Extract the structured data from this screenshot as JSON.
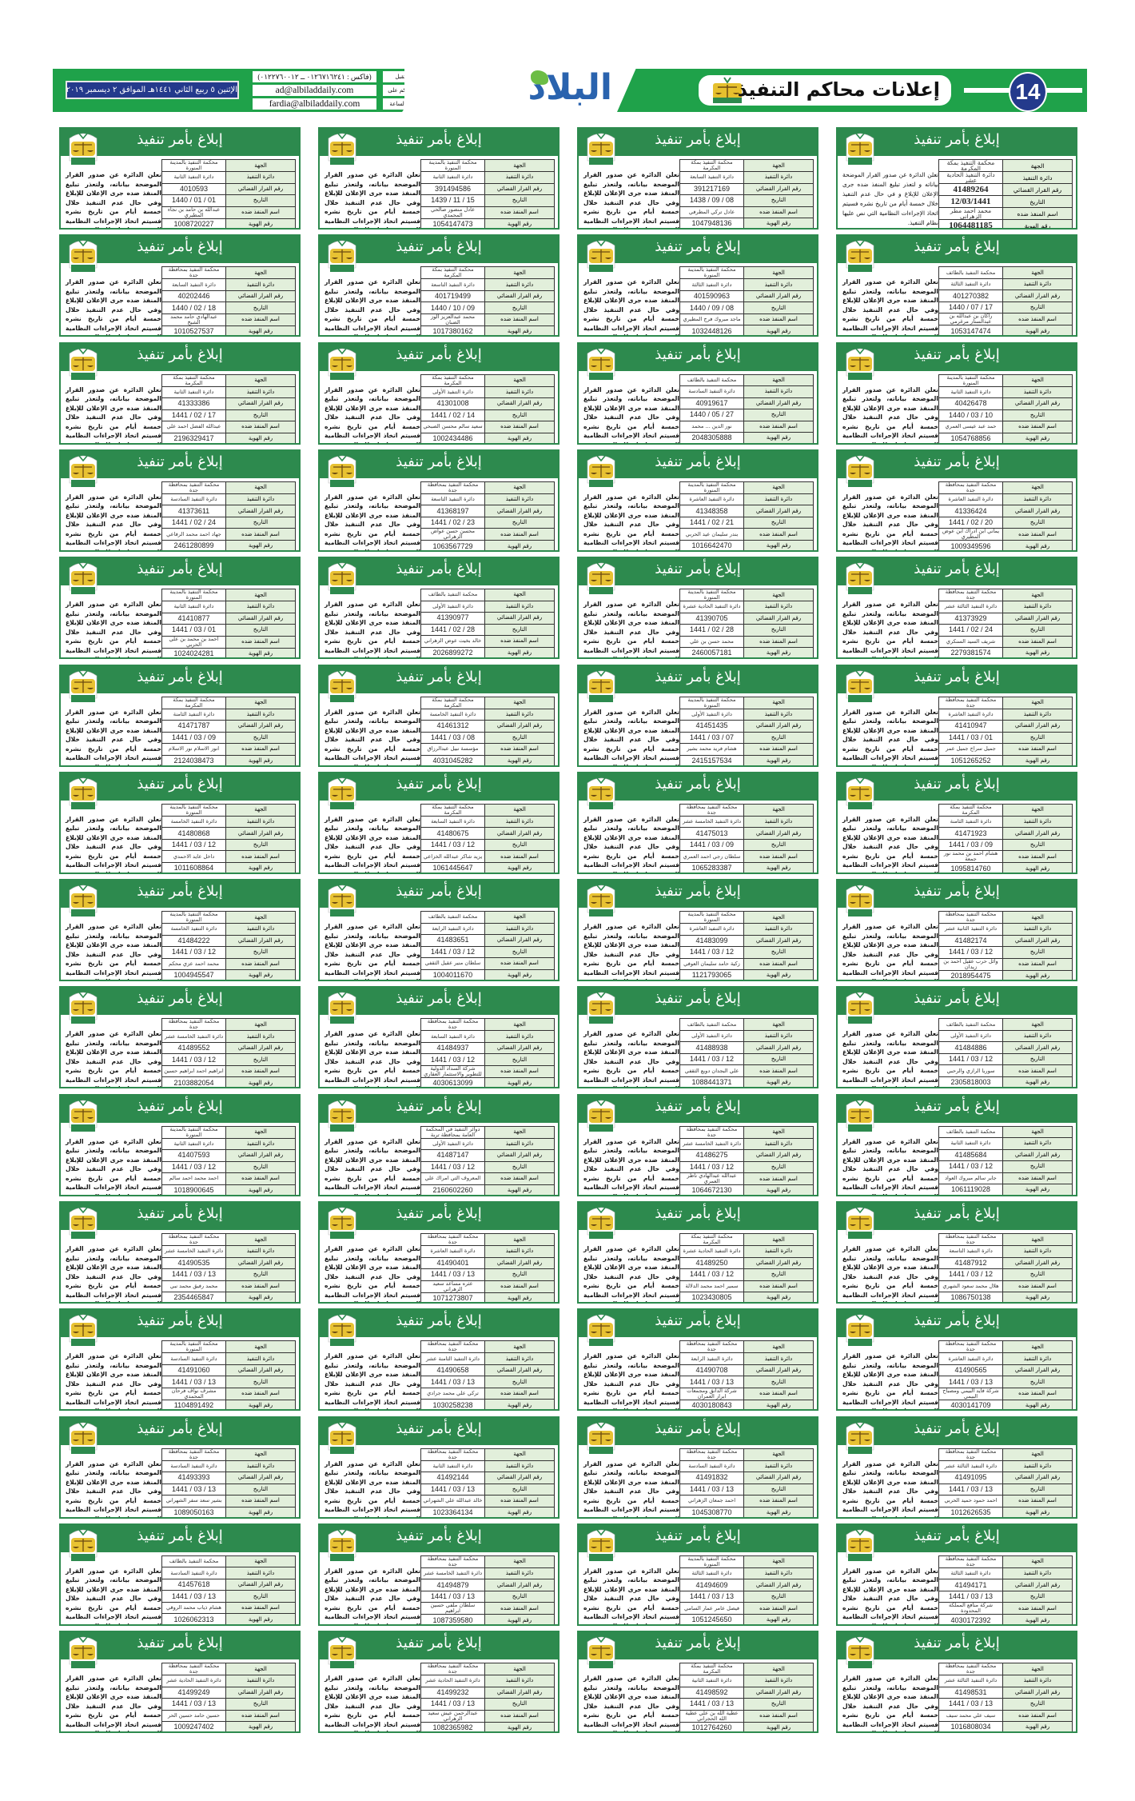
{
  "masthead": {
    "date_line": "الإثنين ٥ ربيع الثاني ١٤٤١هـ الموافق ٢ ديسمبر ٢٠١٩م السنة ٨٩ العدد ٢٢٨٣٦",
    "contacts": [
      {
        "label": "نستقبل",
        "value": "(فاكس : ٠١٢٦٧١٦٢٤١ ــ ٠١٢٢٧٦٠٠١٢)"
      },
      {
        "label": "اعلاناتكم على",
        "value": "ad@albiladdaily.com"
      },
      {
        "label": "مدار الساعة",
        "value": "fardia@albiladdaily.com"
      }
    ],
    "logo_text": "البلاد",
    "section_title": "إعلانات محاكم التنفيذ",
    "page_number": "14",
    "colors": {
      "green": "#1fa24a",
      "navy": "#243a8c",
      "card_green": "#2d8a4e",
      "label_bg": "#e2efdb"
    }
  },
  "card_template": {
    "title": "إبلاغ بأمر تنفيذ",
    "labels": [
      "الجهة",
      "دائرة التنفيذ",
      "رقم القرار القضائي",
      "التاريخ",
      "اسم المنفذ ضده",
      "رقم الهوية"
    ],
    "notice_text": "تعلن الدائرة عن صدور القرار الموضحة بياناته، ولتعذر تبليغ المنفذ ضده جرى الإعلان للإبلاغ وفي حال عدم التنفيذ خلال خمسة أيام من تاريخ نشره فسيتم اتخاذ الإجراءات النظامية التي نص عليها نظام التنفيذ.",
    "notice_text_alt": "تعلن الدائرة عن صدور القرار الموضحة بياناته و لتعذر تبليغ المنفذ ضده جرى الإعلان للإبلاغ و في حال عدم التنفيذ خلال خمسة أيام من تاريخ نشره فسيتم اتخاذ الإجراءات النظامية التي نص عليها نظام التنفيذ."
  },
  "notices": [
    {
      "court": "محكمة التنفيذ بالمدينة المنورة",
      "dept": "دائرة التنفيذ الثانية",
      "decision": "4010593",
      "date": "01 / 01 / 1440",
      "name": "عبدالله بن حامد بن نجاء المطيري",
      "id": "1008720227"
    },
    {
      "court": "محكمة التنفيذ بالمدينة المنورة",
      "dept": "دائرة التنفيذ الثانية",
      "decision": "391494586",
      "date": "15 / 11 / 1439",
      "name": "عادل منصور صالحي المحمدي",
      "id": "1054147473"
    },
    {
      "court": "محكمة التنفيذ بمكة المكرمة",
      "dept": "دائرة التنفيذ السابعة",
      "decision": "391217169",
      "date": "08 / 09 / 1438",
      "name": "عادل تركي المطرفي",
      "id": "1047948136"
    },
    {
      "court": "محكمة التنفيذ بمكة المكرمة",
      "dept": "دائرة التنفيذ الحادية عشر",
      "decision": "41489264",
      "date": "12/03/1441",
      "name": "محمد احمد مطر الزهراني",
      "id": "1064481185",
      "special": true
    },
    {
      "court": "محكمة التنفيذ بمحافظة جدة",
      "dept": "دائرة التنفيذ السابعة",
      "decision": "40202446",
      "date": "18 / 02 / 1440",
      "name": "عبدالهادي حامد محمد الشيخ",
      "id": "1010527537"
    },
    {
      "court": "محكمة التنفيذ بمكة المكرمة",
      "dept": "دائرة التنفيذ التاسعة",
      "decision": "401719499",
      "date": "09 / 10 / 1440",
      "name": "محمد عبدالعزيز الوز الضبان",
      "id": "1017380162"
    },
    {
      "court": "محكمة التنفيذ بالمدينة المنورة",
      "dept": "دائرة التنفيذ الثالثة",
      "decision": "401590963",
      "date": "08 / 09 / 1440",
      "name": "ماجد مبروك فرج المطيري",
      "id": "1032448126"
    },
    {
      "court": "محكمة التنفيذ بالطائف",
      "dept": "دائرة التنفيذ الثالثة",
      "decision": "401270382",
      "date": "17 / 07 / 1440",
      "name": "راكان بن عبدالله بن عبدالستار مرغرمي",
      "id": "1053147474"
    },
    {
      "court": "محكمة التنفيذ بمكة المكرمة",
      "dept": "دائرة التنفيذ الثانية",
      "decision": "41333386",
      "date": "17 / 02 / 1441",
      "name": "عبدالله الفضل احمد علي",
      "id": "2196329417"
    },
    {
      "court": "محكمة التنفيذ بمكة المكرمة",
      "dept": "دائرة التنفيذ الأولى",
      "decision": "41301008",
      "date": "14 / 02 / 1441",
      "name": "سعيد سالم محسن الصبحي",
      "id": "1002434486"
    },
    {
      "court": "محكمة التنفيذ بالطائف",
      "dept": "دائرة التنفيذ السادسة",
      "decision": "40919617",
      "date": "27 / 05 / 1440",
      "name": "نور الدين ... محمد",
      "id": "2048305888"
    },
    {
      "court": "محكمة التنفيذ بالمدينة المنورة",
      "dept": "دائرة التنفيذ الثانية",
      "decision": "40426478",
      "date": "10 / 03 / 1440",
      "name": "حمد عبد عيسى العمري",
      "id": "1054768856"
    },
    {
      "court": "محكمة التنفيذ بمحافظة جدة",
      "dept": "دائرة التنفيذ السادسة",
      "decision": "41373611",
      "date": "24 / 02 / 1441",
      "name": "جهاد احمد محمد الرفاعي",
      "id": "2461280899"
    },
    {
      "court": "محكمة التنفيذ بمحافظة جدة",
      "dept": "دائرة التنفيذ التاسعة",
      "decision": "41368197",
      "date": "23 / 02 / 1441",
      "name": "محسن حسن عواض الزهراني",
      "id": "1063567729"
    },
    {
      "court": "محكمة التنفيذ بالمدينة المنورة",
      "dept": "دائرة التنفيذ العاشرة",
      "decision": "41348358",
      "date": "21 / 02 / 1441",
      "name": "بندر سليمان عيد الحربي",
      "id": "1016642470"
    },
    {
      "court": "محكمة التنفيذ بمحافظة جدة",
      "dept": "دائرة التنفيذ العاشرة",
      "decision": "41336424",
      "date": "20 / 02 / 1441",
      "name": "يماني ابن ادراك ابن عوض المطيري",
      "id": "1009349596"
    },
    {
      "court": "محكمة التنفيذ بالمدينة المنورة",
      "dept": "دائرة التنفيذ الثانية",
      "decision": "41410877",
      "date": "01 / 03 / 1441",
      "name": "احمد بن محمد بن علي الحربي",
      "id": "1024024281"
    },
    {
      "court": "محكمة التنفيذ بالطائف",
      "dept": "دائرة التنفيذ الأولى",
      "decision": "41390977",
      "date": "28 / 02 / 1441",
      "name": "خالد بخيت عوض الزهراني",
      "id": "2026899272"
    },
    {
      "court": "محكمة التنفيذ بالمدينة المنورة",
      "dept": "دائرة التنفيذ الحادية عشرة",
      "decision": "41390705",
      "date": "28 / 02 / 1441",
      "name": "محمد حسن بن علي",
      "id": "2460057181"
    },
    {
      "court": "محكمة التنفيذ بمحافظة جدة",
      "dept": "دائرة التنفيذ الثالثة عشر",
      "decision": "41373929",
      "date": "24 / 02 / 1441",
      "name": "شريف السيد السنكري",
      "id": "2279381574"
    },
    {
      "court": "محكمة التنفيذ بمكة المكرمة",
      "dept": "دائرة التنفيذ الثامنة",
      "decision": "41471787",
      "date": "09 / 03 / 1441",
      "name": "انور الاسلام نور الاسلام",
      "id": "2124038473"
    },
    {
      "court": "محكمة التنفيذ بمكة المكرمة",
      "dept": "دائرة التنفيذ الخامسة",
      "decision": "41461312",
      "date": "08 / 03 / 1441",
      "name": "مؤسسة نبيل عبدالرزاق",
      "id": "4031045282"
    },
    {
      "court": "محكمة التنفيذ بالمدينة المنورة",
      "dept": "دائرة التنفيذ الأولى",
      "decision": "41451435",
      "date": "07 / 03 / 1441",
      "name": "هشام فريد محمد بشير",
      "id": "2415157534"
    },
    {
      "court": "محكمة التنفيذ بمحافظة جدة",
      "dept": "دائرة التنفيذ العاشرة",
      "decision": "41410947",
      "date": "01 / 03 / 1441",
      "name": "جميل سراج جميل عمر",
      "id": "1051265252"
    },
    {
      "court": "محكمة التنفيذ بالمدينة المنورة",
      "dept": "دائرة التنفيذ الخامسة",
      "decision": "41480868",
      "date": "12 / 03 / 1441",
      "name": "داخل عايد الاحمدي",
      "id": "1011608864"
    },
    {
      "court": "محكمة التنفيذ بمكة المكرمة",
      "dept": "دائرة التنفيذ السابعة",
      "decision": "41480675",
      "date": "12 / 03 / 1441",
      "name": "يزيد شاكر عبدالله الخزاعي",
      "id": "1061445647"
    },
    {
      "court": "محكمة التنفيذ بمحافظة جدة",
      "dept": "دائرة التنفيذ الخامسة عشر",
      "decision": "41475013",
      "date": "09 / 03 / 1441",
      "name": "سلطان رجي احمد العمري",
      "id": "1065283387"
    },
    {
      "court": "محكمة التنفيذ بمكة المكرمة",
      "dept": "دائرة التنفيذ الثامنة",
      "decision": "41471923",
      "date": "09 / 03 / 1441",
      "name": "هشام احمد بن محمد نور جمعة",
      "id": "1095814760"
    },
    {
      "court": "محكمة التنفيذ بالمدينة المنورة",
      "dept": "دائرة التنفيذ الخامسة",
      "decision": "41484222",
      "date": "12 / 03 / 1441",
      "name": "محمد احمد عزي محكم",
      "id": "1004945547"
    },
    {
      "court": "محكمة التنفيذ بالطائف",
      "dept": "دائرة التنفيذ الرابعة",
      "decision": "41483651",
      "date": "12 / 03 / 1441",
      "name": "سلطان منير عقيل الثقفي",
      "id": "1004011670"
    },
    {
      "court": "محكمة التنفيذ بالمدينة المنورة",
      "dept": "دائرة التنفيذ العاشرة",
      "decision": "41483099",
      "date": "12 / 03 / 1441",
      "name": "زكية حامد سليمان العوفي",
      "id": "1121793065"
    },
    {
      "court": "محكمة التنفيذ بمحافظة جدة",
      "dept": "دائرة التنفيذ الثانية عشر",
      "decision": "41482174",
      "date": "12 / 03 / 1441",
      "name": "وائل حرب عقيل احمد بن زيدان",
      "id": "2018954475"
    },
    {
      "court": "محكمة التنفيذ بمحافظة جدة",
      "dept": "دائرة التنفيذ الخامسة عشر",
      "decision": "41489552",
      "date": "12 / 03 / 1441",
      "name": "ابراهيم احمد ابراهيم حسين",
      "id": "2103882054"
    },
    {
      "court": "محكمة التنفيذ بمحافظة جدة",
      "dept": "دائرة التنفيذ السابعة",
      "decision": "41484937",
      "date": "12 / 03 / 1441",
      "name": "شركة السداد الدولية للتطوير والاستثمار العقاري",
      "id": "4030613099"
    },
    {
      "court": "محكمة التنفيذ بالطائف",
      "dept": "دائرة التنفيذ الأولى",
      "decision": "41488938",
      "date": "12 / 03 / 1441",
      "name": "علي البجدان دويع الثقفي",
      "id": "1088441371"
    },
    {
      "court": "محكمة التنفيذ بالطائف",
      "dept": "دائرة التنفيذ الأولى",
      "decision": "41484886",
      "date": "12 / 03 / 1441",
      "name": "سوريا الرازي والرحبي",
      "id": "2305818003"
    },
    {
      "court": "محكمة التنفيذ بالمدينة المنورة",
      "dept": "دائرة التنفيذ الثانية",
      "decision": "41407593",
      "date": "12 / 03 / 1441",
      "name": "احمد محمد احمد سالم",
      "id": "1018900645"
    },
    {
      "court": "دوائر التنفيذ في المحكمة العامة بمحافظة تربة",
      "dept": "دائرة التنفيذ الأولى",
      "decision": "41487147",
      "date": "12 / 03 / 1441",
      "name": "المعروف التي امراك علي",
      "id": "2160602260"
    },
    {
      "court": "محكمة التنفيذ بمحافظة جدة",
      "dept": "دائرة التنفيذ الخامسة عشر",
      "decision": "41486275",
      "date": "12 / 03 / 1441",
      "name": "عبدالله عبدالهادي ناظر العمري",
      "id": "1064672130"
    },
    {
      "court": "محكمة التنفيذ بالطائف",
      "dept": "دائرة التنفيذ الثانية",
      "decision": "41485684",
      "date": "12 / 03 / 1441",
      "name": "جابر سالم مبروك العواد",
      "id": "1061119028"
    },
    {
      "court": "محكمة التنفيذ بمحافظة جدة",
      "dept": "دائرة التنفيذ الخامسة عشر",
      "decision": "41490535",
      "date": "13 / 03 / 1441",
      "name": "محمد رفيق محمد نبي",
      "id": "2354465847"
    },
    {
      "court": "محكمة التنفيذ بمحافظة جدة",
      "dept": "دائرة التنفيذ العاشرة",
      "decision": "41490401",
      "date": "13 / 03 / 1441",
      "name": "عثره مساعد سعيد الزهراني",
      "id": "1071273807"
    },
    {
      "court": "محكمة التنفيذ بمكة المكرمة",
      "dept": "دائرة التنفيذ الحادية عشرة",
      "decision": "41489250",
      "date": "12 / 03 / 1441",
      "name": "سمير احمد محمد الدلالة",
      "id": "1023430805"
    },
    {
      "court": "محكمة التنفيذ بمحافظة جدة",
      "dept": "دائرة التنفيذ التاسعة",
      "decision": "41487912",
      "date": "12 / 03 / 1441",
      "name": "هلال محمد سعود الشهري",
      "id": "1086750138"
    },
    {
      "court": "محكمة التنفيذ بالمدينة المنورة",
      "dept": "دائرة التنفيذ السادسة",
      "decision": "41491060",
      "date": "13 / 03 / 1441",
      "name": "مشرف نواف فرحان المحمدي",
      "id": "1104891492"
    },
    {
      "court": "محكمة التنفيذ بمحافظة جدة",
      "dept": "دائرة التنفيذ الثامنة عشر",
      "decision": "41490658",
      "date": "13 / 03 / 1441",
      "name": "تركي علي محمد جرادي",
      "id": "1030258238"
    },
    {
      "court": "محكمة التنفيذ بمحافظة جدة",
      "dept": "دائرة التنفيذ الرابعة",
      "decision": "41490708",
      "date": "13 / 03 / 1441",
      "name": "شركة الدانق ومجمعات ابرار العمران",
      "id": "4030180843"
    },
    {
      "court": "محكمة التنفيذ بمحافظة جدة",
      "dept": "دائرة التنفيذ العاشرة",
      "decision": "41490565",
      "date": "13 / 03 / 1441",
      "name": "شركة فايد البيمي ومصباح البيمي",
      "id": "4030141709"
    },
    {
      "court": "محكمة التنفيذ بمحافظة جدة",
      "dept": "دائرة التنفيذ السادسة",
      "decision": "41493393",
      "date": "13 / 03 / 1441",
      "name": "بشير سعد سفر الشهراني",
      "id": "1089050163"
    },
    {
      "court": "محكمة التنفيذ بمحافظة جدة",
      "dept": "دائرة التنفيذ الثانية",
      "decision": "41492144",
      "date": "13 / 03 / 1441",
      "name": "خالد عبدالله علي الشهراني",
      "id": "1023364134"
    },
    {
      "court": "محكمة التنفيذ بمحافظة جدة",
      "dept": "دائرة التنفيذ السادسة",
      "decision": "41491832",
      "date": "13 / 03 / 1441",
      "name": "احمد جمعان الزهراني",
      "id": "1045308770"
    },
    {
      "court": "محكمة التنفيذ بمحافظة جدة",
      "dept": "دائرة التنفيذ الثالثة عشر",
      "decision": "41491095",
      "date": "13 / 03 / 1441",
      "name": "احمد حمود حميد الحربي",
      "id": "1012626535"
    },
    {
      "court": "محكمة التنفيذ بالطائف",
      "dept": "دائرة التنفيذ السادسة",
      "decision": "41457618",
      "date": "13 / 03 / 1441",
      "name": "هشام ذياب محمد الروقي",
      "id": "1026062313"
    },
    {
      "court": "محكمة التنفيذ بمحافظة جدة",
      "dept": "دائرة التنفيذ الخامسة عشر",
      "decision": "41494879",
      "date": "13 / 03 / 1441",
      "name": "سلطان ملفي حسين ابراهيم",
      "id": "1087359580"
    },
    {
      "court": "محكمة التنفيذ بالمدينة المنورة",
      "dept": "دائرة التنفيذ الثالثة",
      "decision": "41494609",
      "date": "13 / 03 / 1441",
      "name": "فيصل عامر عمار السامي",
      "id": "1051245650"
    },
    {
      "court": "محكمة التنفيذ بمحافظة جدة",
      "dept": "دائرة التنفيذ الثالثة",
      "decision": "41494171",
      "date": "13 / 03 / 1441",
      "name": "شركة منافع المملكة المحدودة",
      "id": "4030172392"
    },
    {
      "court": "محكمة التنفيذ بمحافظة جدة",
      "dept": "دائرة التنفيذ الحادية عشر",
      "decision": "41499249",
      "date": "13 / 03 / 1441",
      "name": "حسين حامد حسين الحر",
      "id": "1009247402"
    },
    {
      "court": "محكمة التنفيذ بمحافظة جدة",
      "dept": "دائرة التنفيذ الحادية عشر",
      "decision": "41499232",
      "date": "13 / 03 / 1441",
      "name": "عبدالرحمن عيش سعيد الزهراني",
      "id": "1082365982"
    },
    {
      "court": "محكمة التنفيذ بمكة المكرمة",
      "dept": "دائرة التنفيذ الثانية",
      "decision": "41498592",
      "date": "13 / 03 / 1441",
      "name": "عطية الله بن علي عطية الله الحجراني",
      "id": "1012764260"
    },
    {
      "court": "محكمة التنفيذ بمحافظة جدة",
      "dept": "دائرة التنفيذ الثالثة عشر",
      "decision": "41498531",
      "date": "13 / 03 / 1441",
      "name": "سيف علي محمد سيف",
      "id": "1016808034"
    }
  ]
}
